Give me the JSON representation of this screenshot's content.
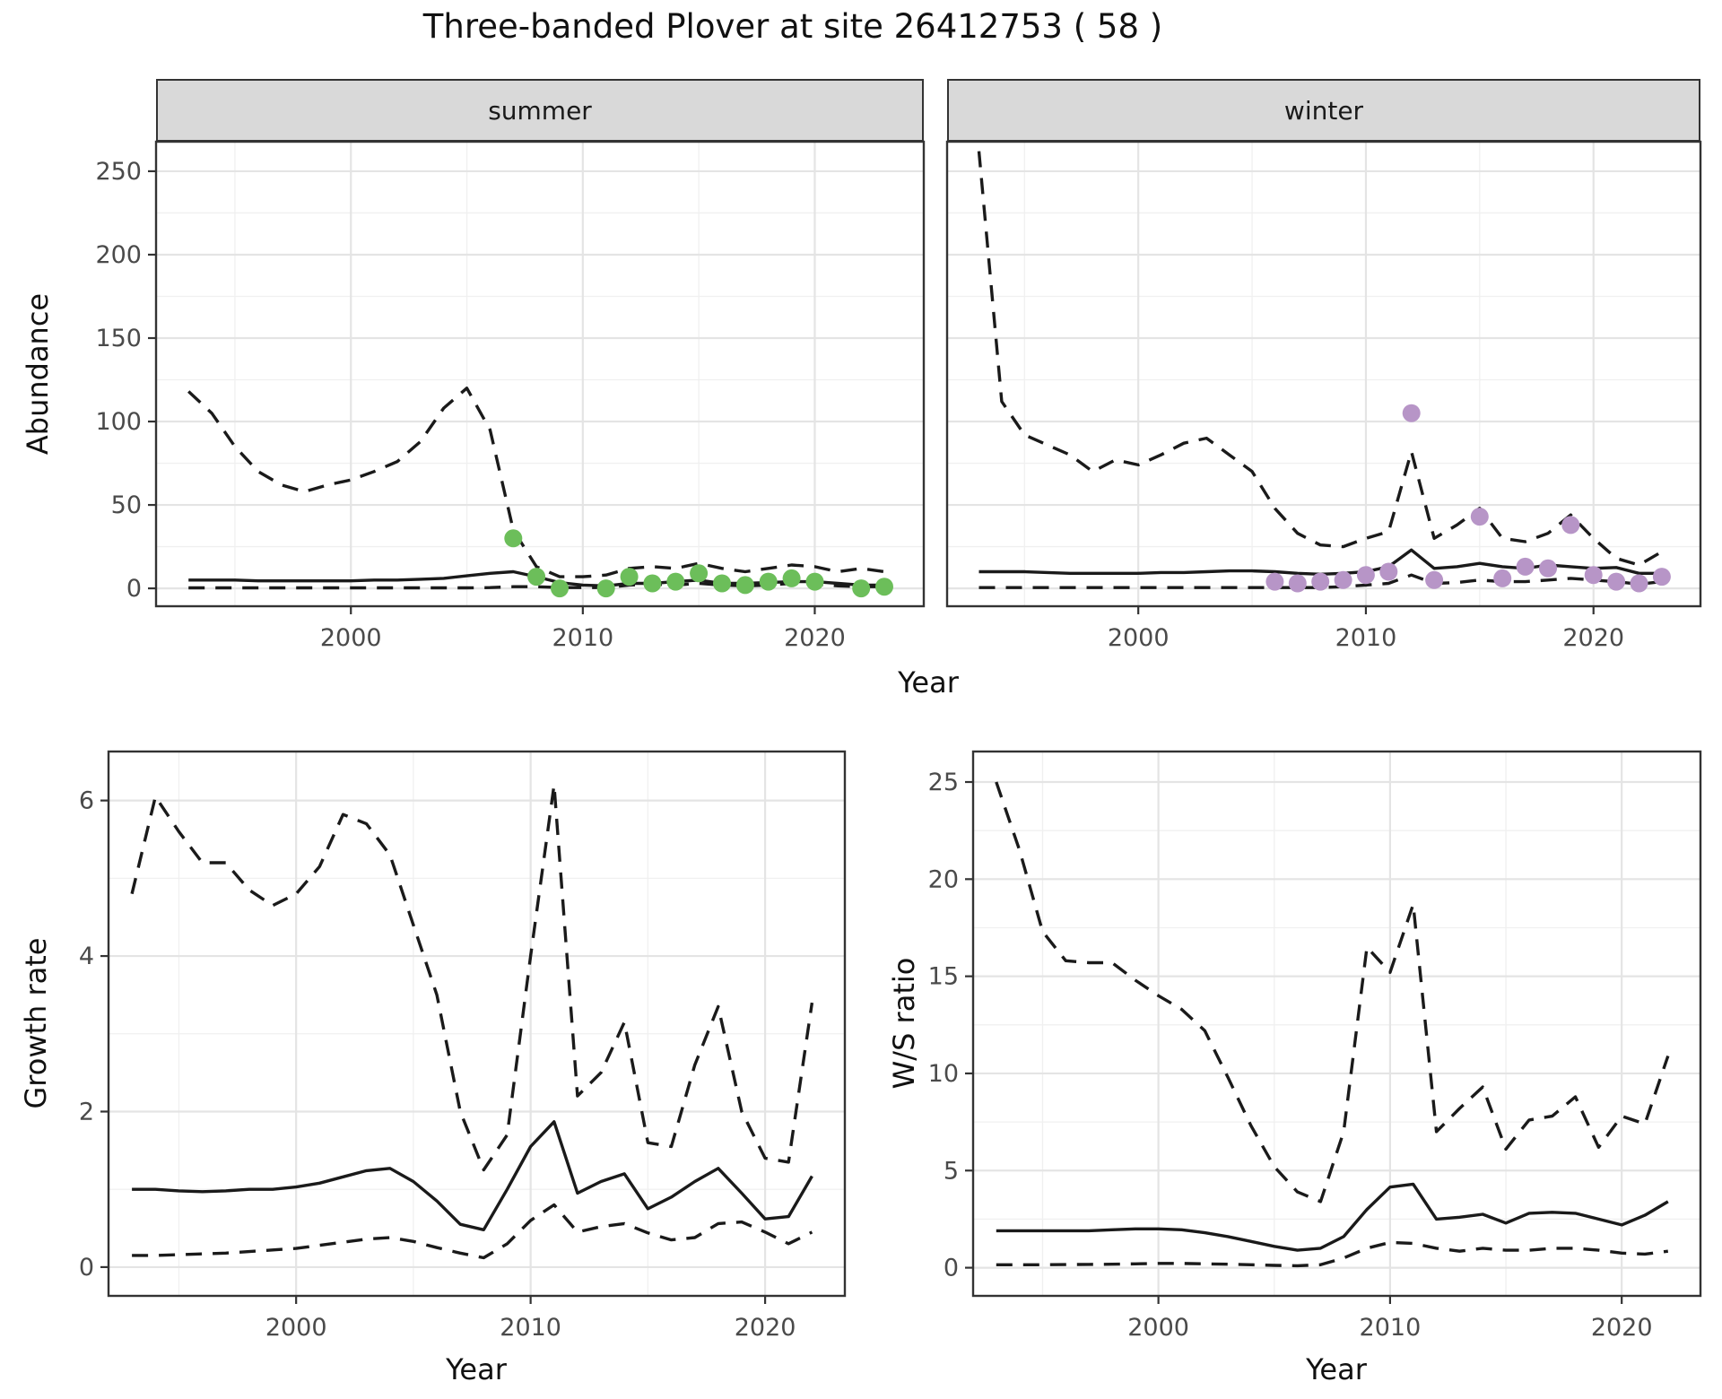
{
  "title": "Three-banded Plover at site 26412753 ( 58 )",
  "colors": {
    "summer_points": "#6CBE5A",
    "winter_points": "#B795C7",
    "line": "#1a1a1a",
    "grid_major": "#e4e4e4",
    "grid_minor": "#f0f0f0",
    "frame": "#333333",
    "strip_bg": "#d9d9d9",
    "tick_text": "#4a4a4a"
  },
  "chart_data": [
    {
      "id": "abundance_summer",
      "type": "line",
      "title_strip": "summer",
      "xlabel": "Year",
      "ylabel": "Abundance",
      "xlim": [
        1991.6,
        2024.7
      ],
      "ylim": [
        -10.7,
        267.7
      ],
      "x_ticks": [
        2000,
        2010,
        2020
      ],
      "y_ticks": [
        0,
        50,
        100,
        150,
        200,
        250
      ],
      "grid": true,
      "legend": "none",
      "x": [
        1993,
        1994,
        1995,
        1996,
        1997,
        1998,
        1999,
        2000,
        2001,
        2002,
        2003,
        2004,
        2005,
        2006,
        2007,
        2008,
        2009,
        2010,
        2011,
        2012,
        2013,
        2014,
        2015,
        2016,
        2017,
        2018,
        2019,
        2020,
        2021,
        2022,
        2023
      ],
      "series": [
        {
          "name": "upper_ci",
          "style": "dashed",
          "values": [
            118,
            105,
            85,
            70,
            62,
            58,
            62,
            65,
            70,
            76,
            88,
            108,
            120,
            95,
            35,
            13,
            7,
            7,
            8,
            12,
            13,
            12,
            15,
            12,
            10,
            12,
            14,
            13,
            10,
            12,
            10
          ]
        },
        {
          "name": "fit",
          "style": "solid",
          "values": [
            5,
            5,
            5,
            4.5,
            4.5,
            4.5,
            4.5,
            4.5,
            5,
            5,
            5.5,
            6,
            7.5,
            9,
            10,
            7,
            3.5,
            2,
            1.5,
            3,
            3,
            4,
            5,
            3,
            3,
            3.5,
            4,
            4,
            3,
            2,
            2
          ]
        },
        {
          "name": "lower_ci",
          "style": "dashed",
          "values": [
            0.3,
            0.3,
            0.3,
            0.3,
            0.3,
            0.3,
            0.3,
            0.3,
            0.3,
            0.3,
            0.3,
            0.3,
            0.3,
            0.5,
            1,
            1,
            0.5,
            0.5,
            0.5,
            2,
            2.5,
            2,
            3,
            2,
            1.5,
            2,
            3,
            2.5,
            1.5,
            1,
            1
          ]
        }
      ],
      "points": {
        "name": "observed_counts",
        "color": "#6CBE5A",
        "x": [
          2007,
          2008,
          2009,
          2011,
          2012,
          2013,
          2014,
          2015,
          2016,
          2017,
          2018,
          2019,
          2020,
          2022,
          2023
        ],
        "y": [
          30,
          7,
          0,
          0,
          7,
          3,
          4,
          9,
          3,
          2,
          4,
          6,
          4,
          0,
          1
        ]
      }
    },
    {
      "id": "abundance_winter",
      "type": "line",
      "title_strip": "winter",
      "xlabel": "Year",
      "ylabel": "Abundance",
      "xlim": [
        1991.6,
        2024.7
      ],
      "ylim": [
        -10.7,
        267.7
      ],
      "x_ticks": [
        2000,
        2010,
        2020
      ],
      "y_ticks": [
        0,
        50,
        100,
        150,
        200,
        250
      ],
      "grid": true,
      "legend": "none",
      "x": [
        1993,
        1994,
        1995,
        1996,
        1997,
        1998,
        1999,
        2000,
        2001,
        2002,
        2003,
        2004,
        2005,
        2006,
        2007,
        2008,
        2009,
        2010,
        2011,
        2012,
        2013,
        2014,
        2015,
        2016,
        2017,
        2018,
        2019,
        2020,
        2021,
        2022,
        2023
      ],
      "series": [
        {
          "name": "upper_ci",
          "style": "dashed",
          "values": [
            262,
            112,
            92,
            86,
            80,
            70,
            77,
            74,
            80,
            87,
            90,
            80,
            70,
            48,
            33,
            26,
            25,
            30,
            34,
            82,
            30,
            38,
            48,
            30,
            28,
            33,
            44,
            30,
            18,
            14,
            22
          ]
        },
        {
          "name": "fit",
          "style": "solid",
          "values": [
            10,
            10,
            10,
            9.5,
            9,
            9,
            9,
            9,
            9.5,
            9.5,
            10,
            10.5,
            10.5,
            10,
            9,
            8.5,
            9,
            10,
            13,
            23,
            12,
            13,
            15,
            13,
            12,
            14,
            13,
            12,
            12.5,
            9,
            9
          ]
        },
        {
          "name": "lower_ci",
          "style": "dashed",
          "values": [
            0.5,
            0.5,
            0.5,
            0.5,
            0.5,
            0.5,
            0.5,
            0.5,
            0.5,
            0.5,
            0.5,
            0.5,
            0.5,
            0.5,
            0.5,
            0.5,
            1,
            2,
            3,
            8,
            3,
            3.5,
            5,
            4,
            4,
            5,
            6,
            5,
            4,
            2.5,
            4
          ]
        }
      ],
      "points": {
        "name": "observed_counts",
        "color": "#B795C7",
        "x": [
          2006,
          2007,
          2008,
          2009,
          2010,
          2011,
          2012,
          2013,
          2015,
          2016,
          2017,
          2018,
          2019,
          2020,
          2021,
          2022,
          2023
        ],
        "y": [
          4,
          3,
          4,
          5,
          8,
          10,
          105,
          5,
          43,
          6,
          13,
          12,
          38,
          8,
          4,
          3,
          7
        ]
      }
    },
    {
      "id": "growth_rate",
      "type": "line",
      "title_strip": "",
      "xlabel": "Year",
      "ylabel": "Growth rate",
      "xlim": [
        1992.0,
        2023.4
      ],
      "ylim": [
        -0.37,
        6.63
      ],
      "x_ticks": [
        2000,
        2010,
        2020
      ],
      "y_ticks": [
        0,
        2,
        4,
        6
      ],
      "grid": true,
      "legend": "none",
      "x": [
        1993,
        1994,
        1995,
        1996,
        1997,
        1998,
        1999,
        2000,
        2001,
        2002,
        2003,
        2004,
        2005,
        2006,
        2007,
        2008,
        2009,
        2010,
        2011,
        2012,
        2013,
        2014,
        2015,
        2016,
        2017,
        2018,
        2019,
        2020,
        2021,
        2022
      ],
      "series": [
        {
          "name": "upper_ci",
          "style": "dashed",
          "values": [
            4.8,
            6.05,
            5.6,
            5.2,
            5.2,
            4.85,
            4.65,
            4.8,
            5.15,
            5.82,
            5.7,
            5.3,
            4.4,
            3.5,
            2.0,
            1.25,
            1.7,
            4.0,
            6.2,
            2.2,
            2.5,
            3.15,
            1.6,
            1.55,
            2.6,
            3.35,
            2.0,
            1.4,
            1.35,
            3.4
          ]
        },
        {
          "name": "fit",
          "style": "solid",
          "values": [
            1.0,
            1.0,
            0.98,
            0.97,
            0.98,
            1.0,
            1.0,
            1.03,
            1.08,
            1.16,
            1.24,
            1.27,
            1.1,
            0.85,
            0.55,
            0.48,
            1.0,
            1.55,
            1.87,
            0.95,
            1.1,
            1.2,
            0.75,
            0.9,
            1.1,
            1.27,
            0.95,
            0.62,
            0.65,
            1.17
          ]
        },
        {
          "name": "lower_ci",
          "style": "dashed",
          "values": [
            0.15,
            0.15,
            0.16,
            0.17,
            0.18,
            0.2,
            0.22,
            0.24,
            0.28,
            0.32,
            0.36,
            0.38,
            0.33,
            0.25,
            0.18,
            0.12,
            0.3,
            0.6,
            0.8,
            0.45,
            0.52,
            0.56,
            0.44,
            0.35,
            0.38,
            0.56,
            0.58,
            0.45,
            0.3,
            0.45
          ]
        }
      ],
      "points": null
    },
    {
      "id": "ws_ratio",
      "type": "line",
      "title_strip": "",
      "xlabel": "Year",
      "ylabel": "W/S ratio",
      "xlim": [
        1992.0,
        2023.4
      ],
      "ylim": [
        -1.45,
        26.57
      ],
      "x_ticks": [
        2000,
        2010,
        2020
      ],
      "y_ticks": [
        0,
        5,
        10,
        15,
        20,
        25
      ],
      "grid": true,
      "legend": "none",
      "x": [
        1993,
        1994,
        1995,
        1996,
        1997,
        1998,
        1999,
        2000,
        2001,
        2002,
        2003,
        2004,
        2005,
        2006,
        2007,
        2008,
        2009,
        2010,
        2011,
        2012,
        2013,
        2014,
        2015,
        2016,
        2017,
        2018,
        2019,
        2020,
        2021,
        2022
      ],
      "series": [
        {
          "name": "upper_ci",
          "style": "dashed",
          "values": [
            25,
            21.5,
            17.3,
            15.8,
            15.7,
            15.7,
            14.8,
            14.0,
            13.3,
            12.2,
            9.8,
            7.3,
            5.2,
            3.9,
            3.4,
            7.0,
            16.5,
            15.2,
            18.7,
            7.0,
            8.2,
            9.3,
            6.1,
            7.6,
            7.8,
            8.8,
            6.2,
            7.8,
            7.4,
            10.9
          ]
        },
        {
          "name": "fit",
          "style": "solid",
          "values": [
            1.9,
            1.9,
            1.9,
            1.9,
            1.9,
            1.95,
            2.0,
            2.0,
            1.95,
            1.8,
            1.6,
            1.35,
            1.1,
            0.9,
            1.0,
            1.6,
            3.0,
            4.15,
            4.3,
            2.5,
            2.6,
            2.75,
            2.3,
            2.8,
            2.85,
            2.8,
            2.5,
            2.2,
            2.7,
            3.4
          ]
        },
        {
          "name": "lower_ci",
          "style": "dashed",
          "values": [
            0.15,
            0.15,
            0.15,
            0.16,
            0.17,
            0.18,
            0.2,
            0.22,
            0.22,
            0.2,
            0.18,
            0.15,
            0.12,
            0.1,
            0.15,
            0.5,
            1.0,
            1.3,
            1.25,
            1.0,
            0.85,
            1.0,
            0.9,
            0.9,
            1.0,
            1.0,
            0.9,
            0.75,
            0.7,
            0.85
          ]
        }
      ],
      "points": null
    }
  ]
}
